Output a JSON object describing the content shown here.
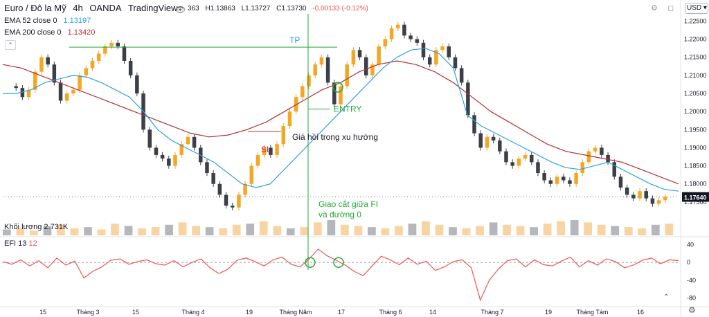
{
  "header": {
    "symbol": "Euro / Đô la Mỹ",
    "interval": "4h",
    "exchange": "OANDA",
    "source": "TradingView",
    "o_fragment": "363",
    "high": "H1.13863",
    "low": "L1.13727",
    "close": "C1.13730",
    "change": "-0.00133 (-0.12%)"
  },
  "indicators": {
    "ema52_label": "EMA 52 close 0",
    "ema52_value": "1.13197",
    "ema200_label": "EMA 200 close 0",
    "ema200_value": "1.13420",
    "volume_label": "Khối lượng",
    "volume_value": "2.731K",
    "efi_label": "EFI 13",
    "efi_value": "12"
  },
  "currency_button": "USD",
  "colors": {
    "candle": "#f5a623",
    "candle_dark": "#3c3f48",
    "ema52": "#2e9fe0",
    "ema200": "#b22f2f",
    "efi": "#ef5350",
    "annot_green": "#22a834",
    "tp_blue": "#2e9fe0",
    "sl_red": "#d32f2f",
    "price_tag": "#131722"
  },
  "chart_data": {
    "type": "candlestick",
    "price_axis": {
      "ticks": [
        "1.22500",
        "1.22000",
        "1.21500",
        "1.21000",
        "1.20500",
        "1.20000",
        "1.19500",
        "1.19000",
        "1.18500",
        "1.18000",
        "1.17500"
      ],
      "ylim": [
        1.17,
        1.227
      ],
      "last_price": "1.17640"
    },
    "efi_axis": {
      "ticks": [
        "40",
        "0",
        "-40",
        "-80"
      ],
      "ylim": [
        -95,
        55
      ]
    },
    "time_axis": [
      "15",
      "Tháng 3",
      "15",
      "Tháng 4",
      "19",
      "Tháng Năm",
      "17",
      "Tháng 6",
      "14",
      "Tháng 7",
      "19",
      "Tháng Tám",
      "16"
    ],
    "price_series": [
      1.207,
      1.2065,
      1.204,
      1.206,
      1.211,
      1.215,
      1.213,
      1.208,
      1.203,
      1.205,
      1.206,
      1.21,
      1.212,
      1.214,
      1.216,
      1.218,
      1.219,
      1.218,
      1.214,
      1.21,
      1.205,
      1.195,
      1.19,
      1.188,
      1.187,
      1.185,
      1.188,
      1.191,
      1.193,
      1.19,
      1.186,
      1.183,
      1.18,
      1.177,
      1.174,
      1.1735,
      1.177,
      1.18,
      1.185,
      1.188,
      1.19,
      1.188,
      1.191,
      1.196,
      1.2,
      1.204,
      1.207,
      1.21,
      1.213,
      1.215,
      1.208,
      1.202,
      1.207,
      1.213,
      1.217,
      1.215,
      1.21,
      1.213,
      1.218,
      1.22,
      1.223,
      1.224,
      1.221,
      1.22,
      1.219,
      1.215,
      1.213,
      1.217,
      1.218,
      1.215,
      1.212,
      1.208,
      1.199,
      1.194,
      1.19,
      1.193,
      1.192,
      1.189,
      1.186,
      1.185,
      1.187,
      1.188,
      1.186,
      1.183,
      1.181,
      1.18,
      1.182,
      1.181,
      1.18,
      1.183,
      1.186,
      1.189,
      1.19,
      1.188,
      1.186,
      1.182,
      1.179,
      1.177,
      1.176,
      1.178,
      1.176,
      1.1745,
      1.1755,
      1.1765
    ],
    "ema52_series": [
      1.205,
      1.205,
      1.206,
      1.208,
      1.209,
      1.21,
      1.2095,
      1.208,
      1.206,
      1.204,
      1.2,
      1.195,
      1.192,
      1.19,
      1.188,
      1.186,
      1.183,
      1.18,
      1.179,
      1.18,
      1.184,
      1.188,
      1.192,
      1.196,
      1.2,
      1.204,
      1.208,
      1.212,
      1.215,
      1.217,
      1.2175,
      1.216,
      1.212,
      1.199,
      1.196,
      1.194,
      1.192,
      1.19,
      1.188,
      1.186,
      1.1845,
      1.184,
      1.185,
      1.186,
      1.184,
      1.182,
      1.18,
      1.1785,
      1.178
    ],
    "ema200_series": [
      1.213,
      1.212,
      1.21,
      1.208,
      1.206,
      1.204,
      1.202,
      1.2,
      1.198,
      1.196,
      1.194,
      1.193,
      1.1935,
      1.195,
      1.197,
      1.2,
      1.203,
      1.206,
      1.208,
      1.211,
      1.213,
      1.214,
      1.213,
      1.211,
      1.208,
      1.204,
      1.2,
      1.197,
      1.194,
      1.191,
      1.189,
      1.188,
      1.187,
      1.186,
      1.184,
      1.182,
      1.18
    ],
    "efi_series": [
      2,
      -4,
      6,
      -8,
      4,
      -12,
      10,
      -6,
      3,
      -35,
      -20,
      -10,
      5,
      8,
      -4,
      2,
      6,
      -3,
      -6,
      4,
      -10,
      0,
      8,
      -12,
      -25,
      -15,
      5,
      10,
      2,
      -8,
      6,
      12,
      -4,
      -10,
      8,
      30,
      15,
      5,
      -6,
      -20,
      -30,
      -8,
      14,
      6,
      -5,
      10,
      -4,
      3,
      -18,
      -10,
      2,
      6,
      -12,
      -85,
      -40,
      -15,
      4,
      8,
      -10,
      6,
      -5,
      -8,
      3,
      12,
      -10,
      4,
      -6,
      8,
      2,
      -12,
      -6,
      5,
      10,
      -3,
      6,
      4
    ],
    "volume_series": [
      5,
      6,
      4,
      8,
      9,
      6,
      7,
      5,
      10,
      8,
      6,
      7,
      9,
      11,
      8,
      7,
      6,
      9,
      10,
      12,
      8,
      6,
      7,
      11,
      13,
      9,
      8,
      7,
      6,
      8,
      10,
      12,
      9,
      7,
      6,
      8,
      11,
      9,
      8,
      7,
      10,
      12,
      13,
      11,
      9,
      8,
      7,
      6,
      9,
      10
    ],
    "annotations": {
      "tp_label": "TP",
      "tp_price": 1.2178,
      "entry_label": "ENTRY",
      "entry_price": 1.2007,
      "sl_label": "SL",
      "sl_price": 1.1945,
      "pullback_label": "Giá hồi trong xu hướng",
      "cross_label_line1": "Giao cắt giữa FI",
      "cross_label_line2": "và đường 0"
    }
  }
}
